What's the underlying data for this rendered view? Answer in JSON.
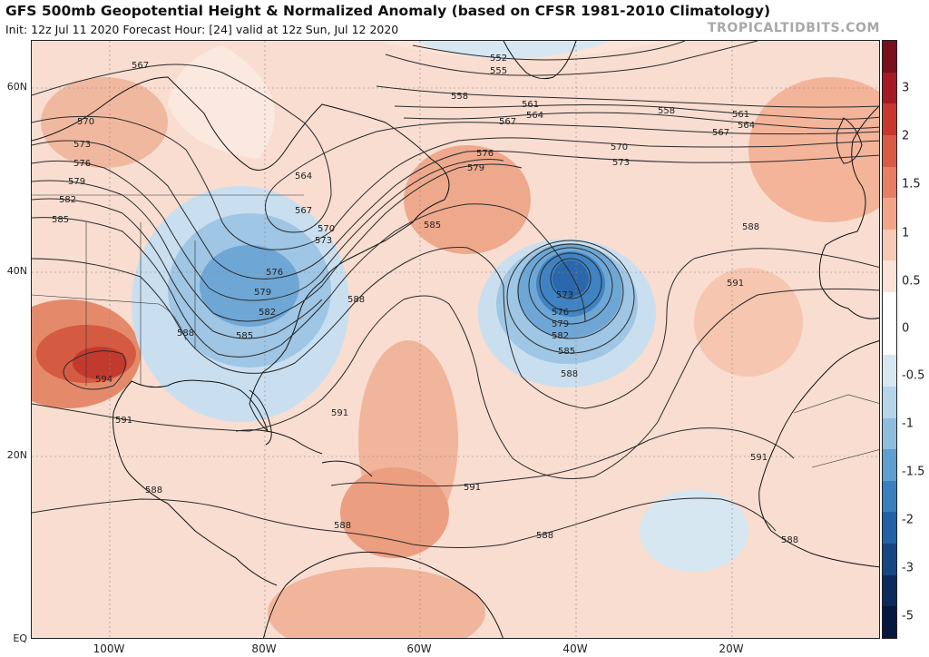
{
  "header": {
    "title": "GFS 500mb Geopotential Height & Normalized Anomaly (based on CFSR 1981-2010 Climatology)",
    "subtitle": "Init: 12z Jul 11 2020   Forecast Hour: [24]   valid at 12z Sun, Jul 12 2020",
    "site": "TROPICALTIDBITS.COM"
  },
  "axes": {
    "lat_labels": [
      "60N",
      "40N",
      "20N",
      "EQ"
    ],
    "lon_labels": [
      "100W",
      "80W",
      "60W",
      "40W",
      "20W"
    ]
  },
  "colorbar": {
    "labels": [
      "3",
      "2",
      "1.5",
      "1",
      "0.5",
      "0",
      "-0.5",
      "-1",
      "-1.5",
      "-2",
      "-3",
      "-5"
    ],
    "colors": [
      "#7a0f1d",
      "#a51a24",
      "#c8362e",
      "#db5a43",
      "#e97d62",
      "#f3a58a",
      "#f8c9b4",
      "#fbe3d7",
      "#ffffff",
      "#ffffff",
      "#d6e7f2",
      "#b6d4ea",
      "#8fbde0",
      "#5f9fd0",
      "#3a80bf",
      "#2362a6",
      "#174685",
      "#0d2a5e",
      "#071840"
    ]
  },
  "contour_labels": {
    "c552": "552",
    "c555": "555",
    "c558": "558",
    "c561": "561",
    "c564": "564",
    "c567": "567",
    "c570": "570",
    "c573": "573",
    "c576": "576",
    "c579": "579",
    "c582": "582",
    "c585": "585",
    "c588": "588",
    "c591": "591",
    "c594": "594"
  },
  "colors": {
    "pos_light": "#f6d2c1",
    "pos_mid": "#eea98d",
    "pos_strong": "#e07c5d",
    "pos_max": "#c83a2f",
    "neg_light": "#c9dff0",
    "neg_mid": "#8fbde0",
    "neg_strong": "#4d8fc8",
    "neg_max": "#2a68ab",
    "land_line": "#111111",
    "contour": "#2b2b2b"
  }
}
